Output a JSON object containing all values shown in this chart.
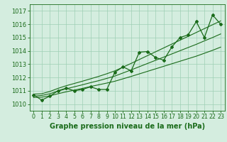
{
  "x": [
    0,
    1,
    2,
    3,
    4,
    5,
    6,
    7,
    8,
    9,
    10,
    11,
    12,
    13,
    14,
    15,
    16,
    17,
    18,
    19,
    20,
    21,
    22,
    23
  ],
  "pressure": [
    1010.7,
    1010.3,
    1010.6,
    1011.0,
    1011.2,
    1011.0,
    1011.1,
    1011.3,
    1011.1,
    1011.1,
    1012.4,
    1012.8,
    1012.5,
    1013.9,
    1013.95,
    1013.5,
    1013.3,
    1014.3,
    1015.0,
    1015.2,
    1016.2,
    1015.0,
    1016.7,
    1016.0
  ],
  "min_line": [
    1010.5,
    1010.52,
    1010.62,
    1010.78,
    1010.92,
    1011.05,
    1011.18,
    1011.32,
    1011.45,
    1011.58,
    1011.72,
    1011.9,
    1012.08,
    1012.27,
    1012.46,
    1012.65,
    1012.84,
    1013.03,
    1013.22,
    1013.41,
    1013.6,
    1013.82,
    1014.04,
    1014.28
  ],
  "max_line": [
    1010.75,
    1010.78,
    1010.95,
    1011.18,
    1011.38,
    1011.55,
    1011.72,
    1011.9,
    1012.08,
    1012.28,
    1012.5,
    1012.78,
    1013.06,
    1013.35,
    1013.64,
    1013.93,
    1014.22,
    1014.51,
    1014.8,
    1015.09,
    1015.38,
    1015.67,
    1015.96,
    1016.25
  ],
  "trend_line": [
    1010.6,
    1010.65,
    1010.78,
    1010.98,
    1011.15,
    1011.3,
    1011.45,
    1011.61,
    1011.76,
    1011.93,
    1012.11,
    1012.34,
    1012.57,
    1012.81,
    1013.05,
    1013.29,
    1013.53,
    1013.77,
    1014.01,
    1014.25,
    1014.49,
    1014.75,
    1015.0,
    1015.27
  ],
  "ylim": [
    1009.5,
    1017.5
  ],
  "yticks": [
    1010,
    1011,
    1012,
    1013,
    1014,
    1015,
    1016,
    1017
  ],
  "xlim": [
    -0.5,
    23.5
  ],
  "line_color": "#1a6b1a",
  "bg_color": "#d4eddf",
  "grid_color": "#9ecfb4",
  "xlabel": "Graphe pression niveau de la mer (hPa)",
  "xlabel_fontsize": 7,
  "tick_fontsize": 6,
  "figsize": [
    3.2,
    2.0
  ],
  "dpi": 100
}
